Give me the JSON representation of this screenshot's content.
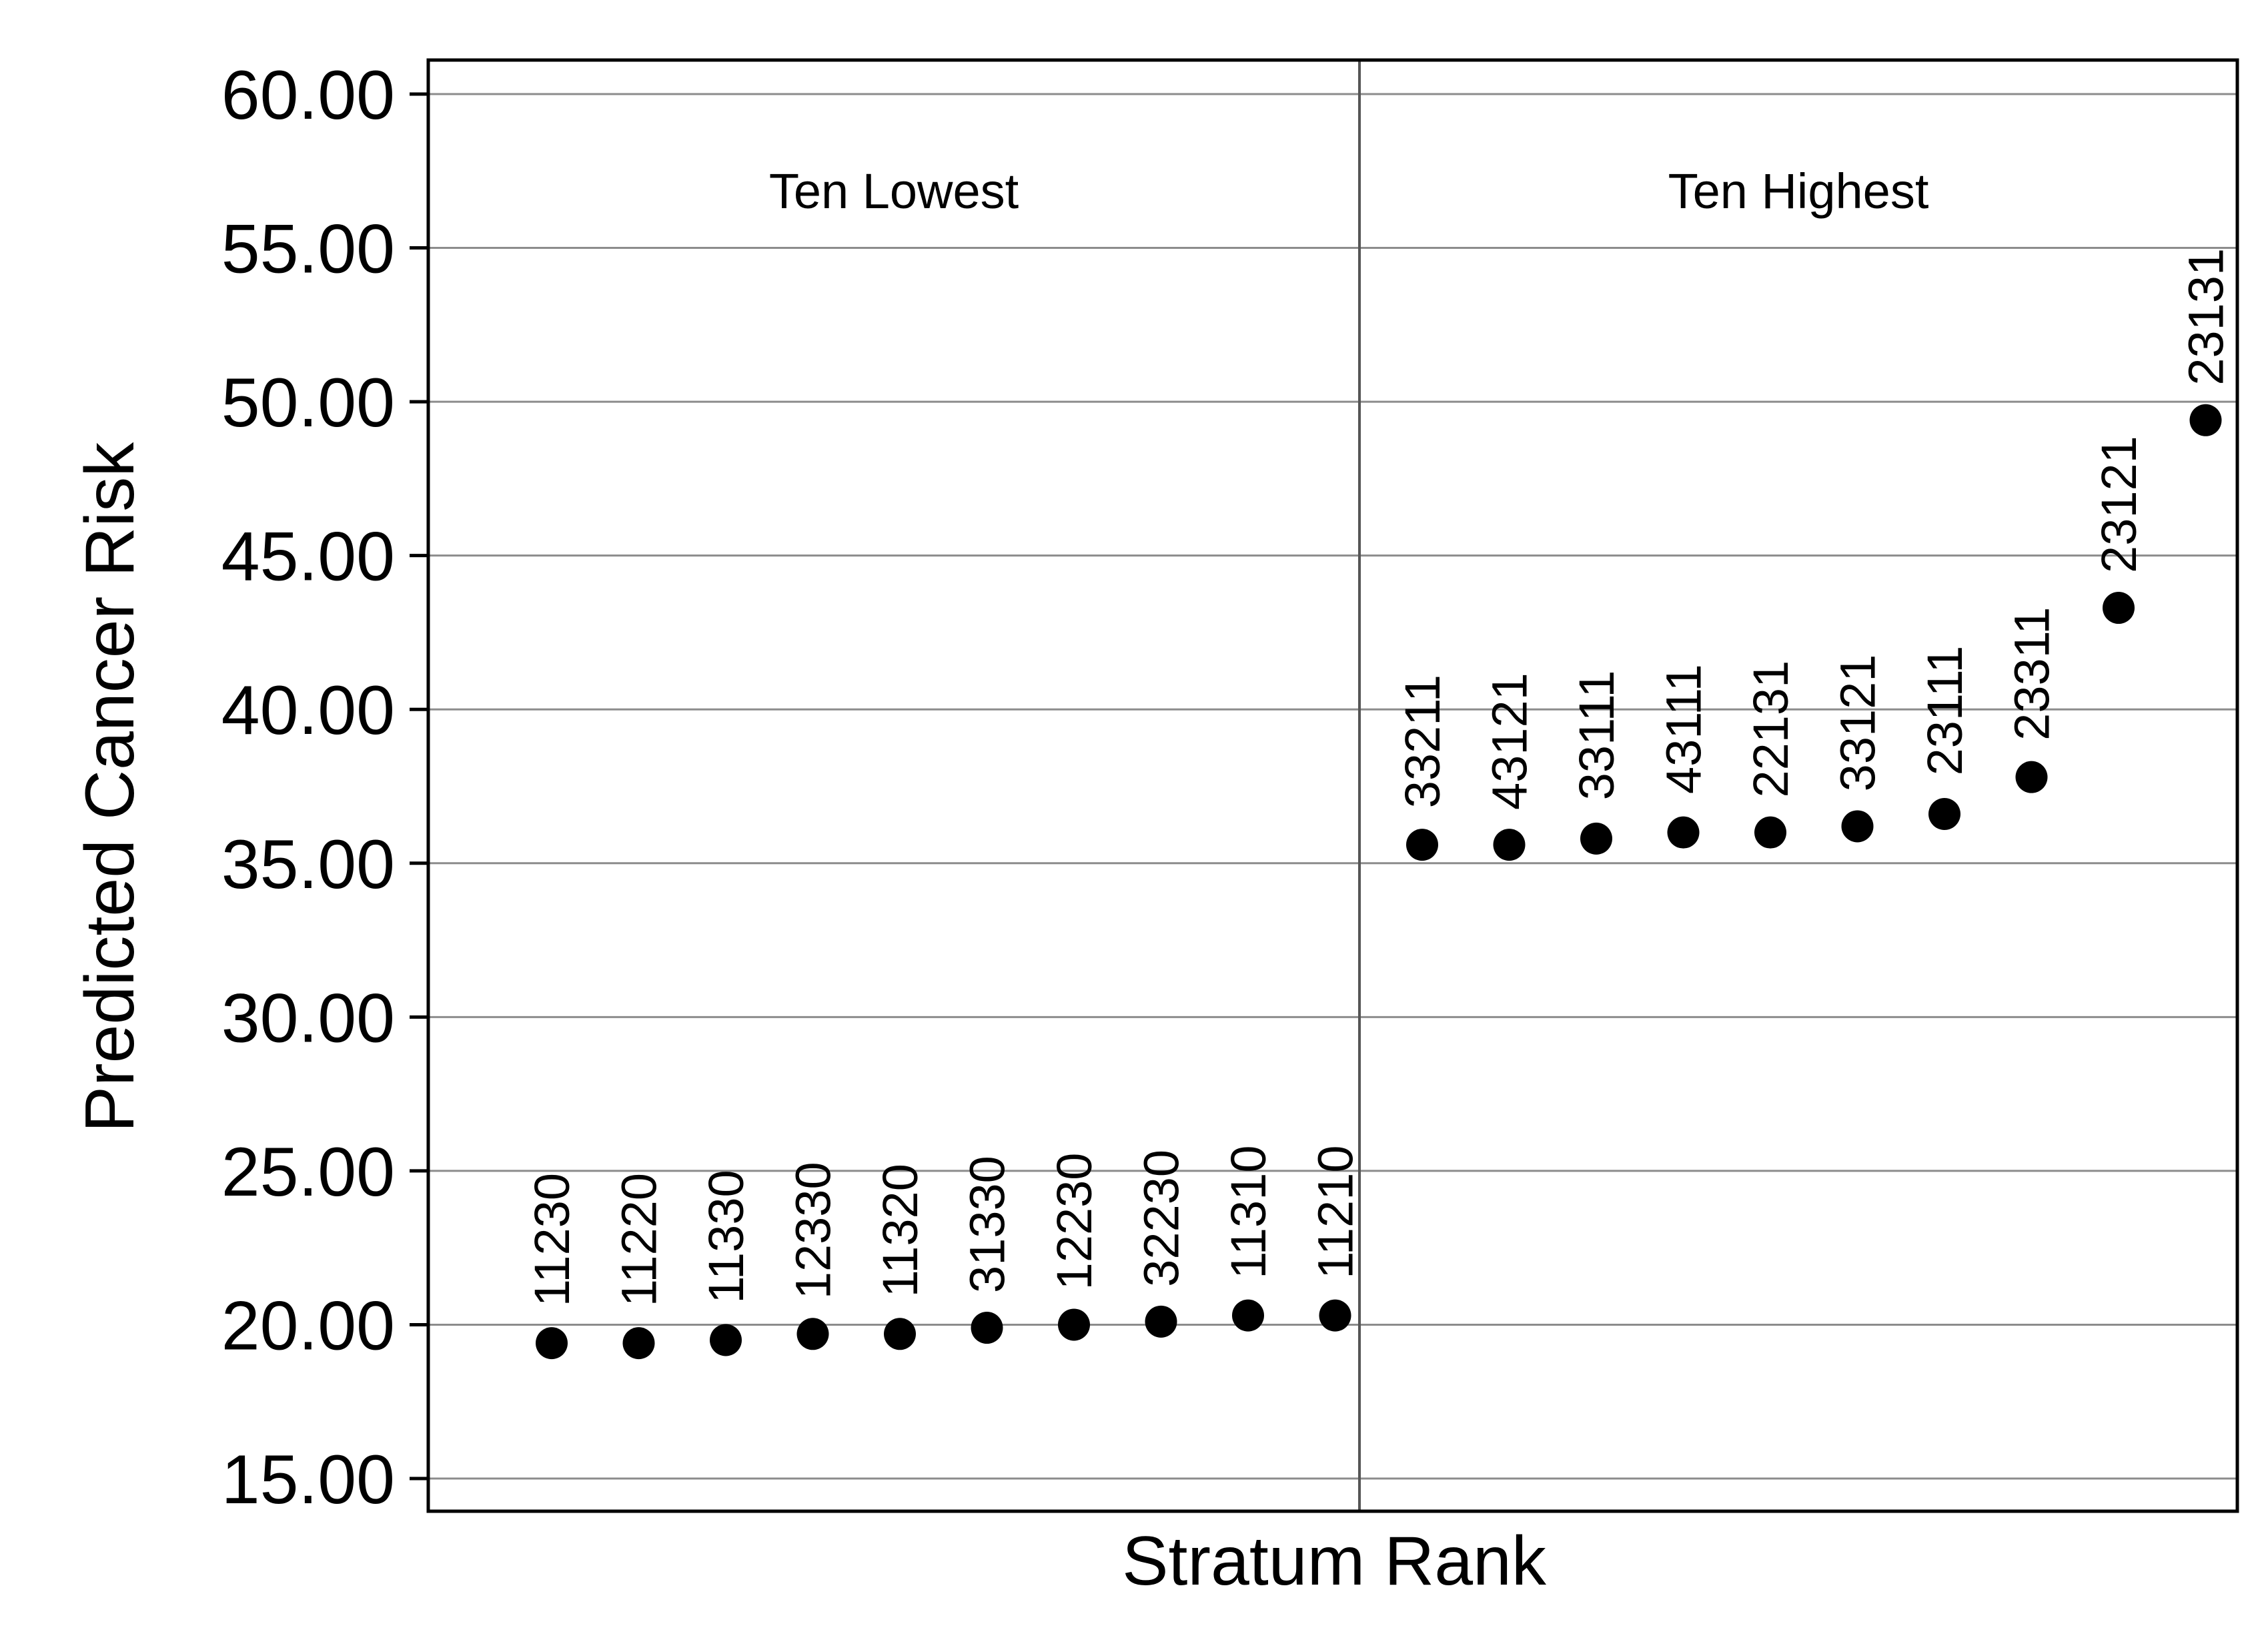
{
  "chart_data": {
    "type": "scatter",
    "title": "",
    "xlabel": "Stratum Rank",
    "ylabel": "Predicted Cancer Risk",
    "ylim": [
      15,
      60
    ],
    "yticks": [
      15,
      20,
      25,
      30,
      35,
      40,
      45,
      50,
      55,
      60
    ],
    "ytick_labels": [
      "15.00",
      "20.00",
      "25.00",
      "30.00",
      "35.00",
      "40.00",
      "45.00",
      "50.00",
      "55.00",
      "60.00"
    ],
    "grid": true,
    "legend": "none",
    "groups": [
      {
        "name": "Ten Lowest",
        "points": [
          {
            "label": "11230",
            "y": 19.4
          },
          {
            "label": "11220",
            "y": 19.4
          },
          {
            "label": "11330",
            "y": 19.5
          },
          {
            "label": "12330",
            "y": 19.7
          },
          {
            "label": "11320",
            "y": 19.7
          },
          {
            "label": "31330",
            "y": 19.9
          },
          {
            "label": "12230",
            "y": 20.0
          },
          {
            "label": "32230",
            "y": 20.1
          },
          {
            "label": "11310",
            "y": 20.3
          },
          {
            "label": "11210",
            "y": 20.3
          }
        ]
      },
      {
        "name": "Ten Highest",
        "points": [
          {
            "label": "33211",
            "y": 35.6
          },
          {
            "label": "43121",
            "y": 35.6
          },
          {
            "label": "33111",
            "y": 35.8
          },
          {
            "label": "43111",
            "y": 36.0
          },
          {
            "label": "22131",
            "y": 36.0
          },
          {
            "label": "33121",
            "y": 36.2
          },
          {
            "label": "23111",
            "y": 36.6
          },
          {
            "label": "23311",
            "y": 37.8
          },
          {
            "label": "23121",
            "y": 43.3
          },
          {
            "label": "23131",
            "y": 49.4
          }
        ]
      }
    ],
    "colors": {
      "marker": "#000000",
      "grid": "#8c8c8c",
      "frame": "#000000"
    }
  }
}
